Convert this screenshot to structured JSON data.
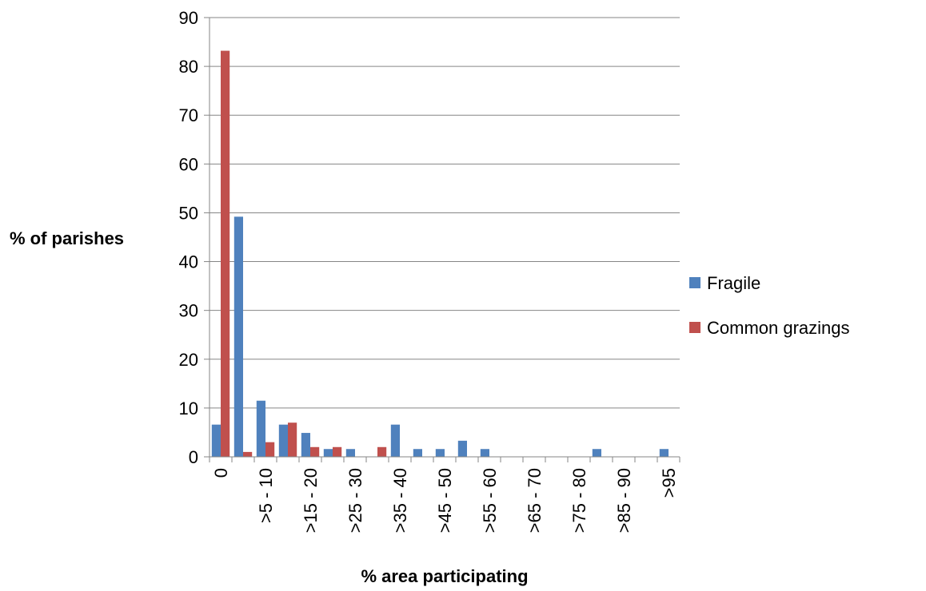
{
  "chart_data": {
    "type": "bar",
    "categories": [
      "0",
      "",
      ">5 - 10",
      "",
      ">15 - 20",
      "",
      ">25 - 30",
      "",
      ">35 - 40",
      "",
      ">45 - 50",
      "",
      ">55 - 60",
      "",
      ">65 - 70",
      "",
      ">75 - 80",
      "",
      ">85 - 90",
      "",
      ">95"
    ],
    "series": [
      {
        "name": "Fragile",
        "color": "#4F81BD",
        "values": [
          6.6,
          49.2,
          11.5,
          6.6,
          4.9,
          1.6,
          1.6,
          0,
          6.6,
          1.6,
          1.6,
          3.3,
          1.6,
          0,
          0,
          0,
          0,
          1.6,
          0,
          0,
          1.6
        ]
      },
      {
        "name": "Common grazings",
        "color": "#C0504D",
        "values": [
          83.2,
          1.0,
          3.0,
          7.0,
          2.0,
          2.0,
          0,
          2.0,
          0,
          0,
          0,
          0,
          0,
          0,
          0,
          0,
          0,
          0,
          0,
          0,
          0
        ]
      }
    ],
    "xlabel": "% area participating",
    "ylabel": "% of parishes",
    "ylim": [
      0,
      90
    ],
    "yticks": [
      "0",
      "10",
      "20",
      "30",
      "40",
      "50",
      "60",
      "70",
      "80",
      "90"
    ],
    "grid": true,
    "legend_position": "right"
  }
}
